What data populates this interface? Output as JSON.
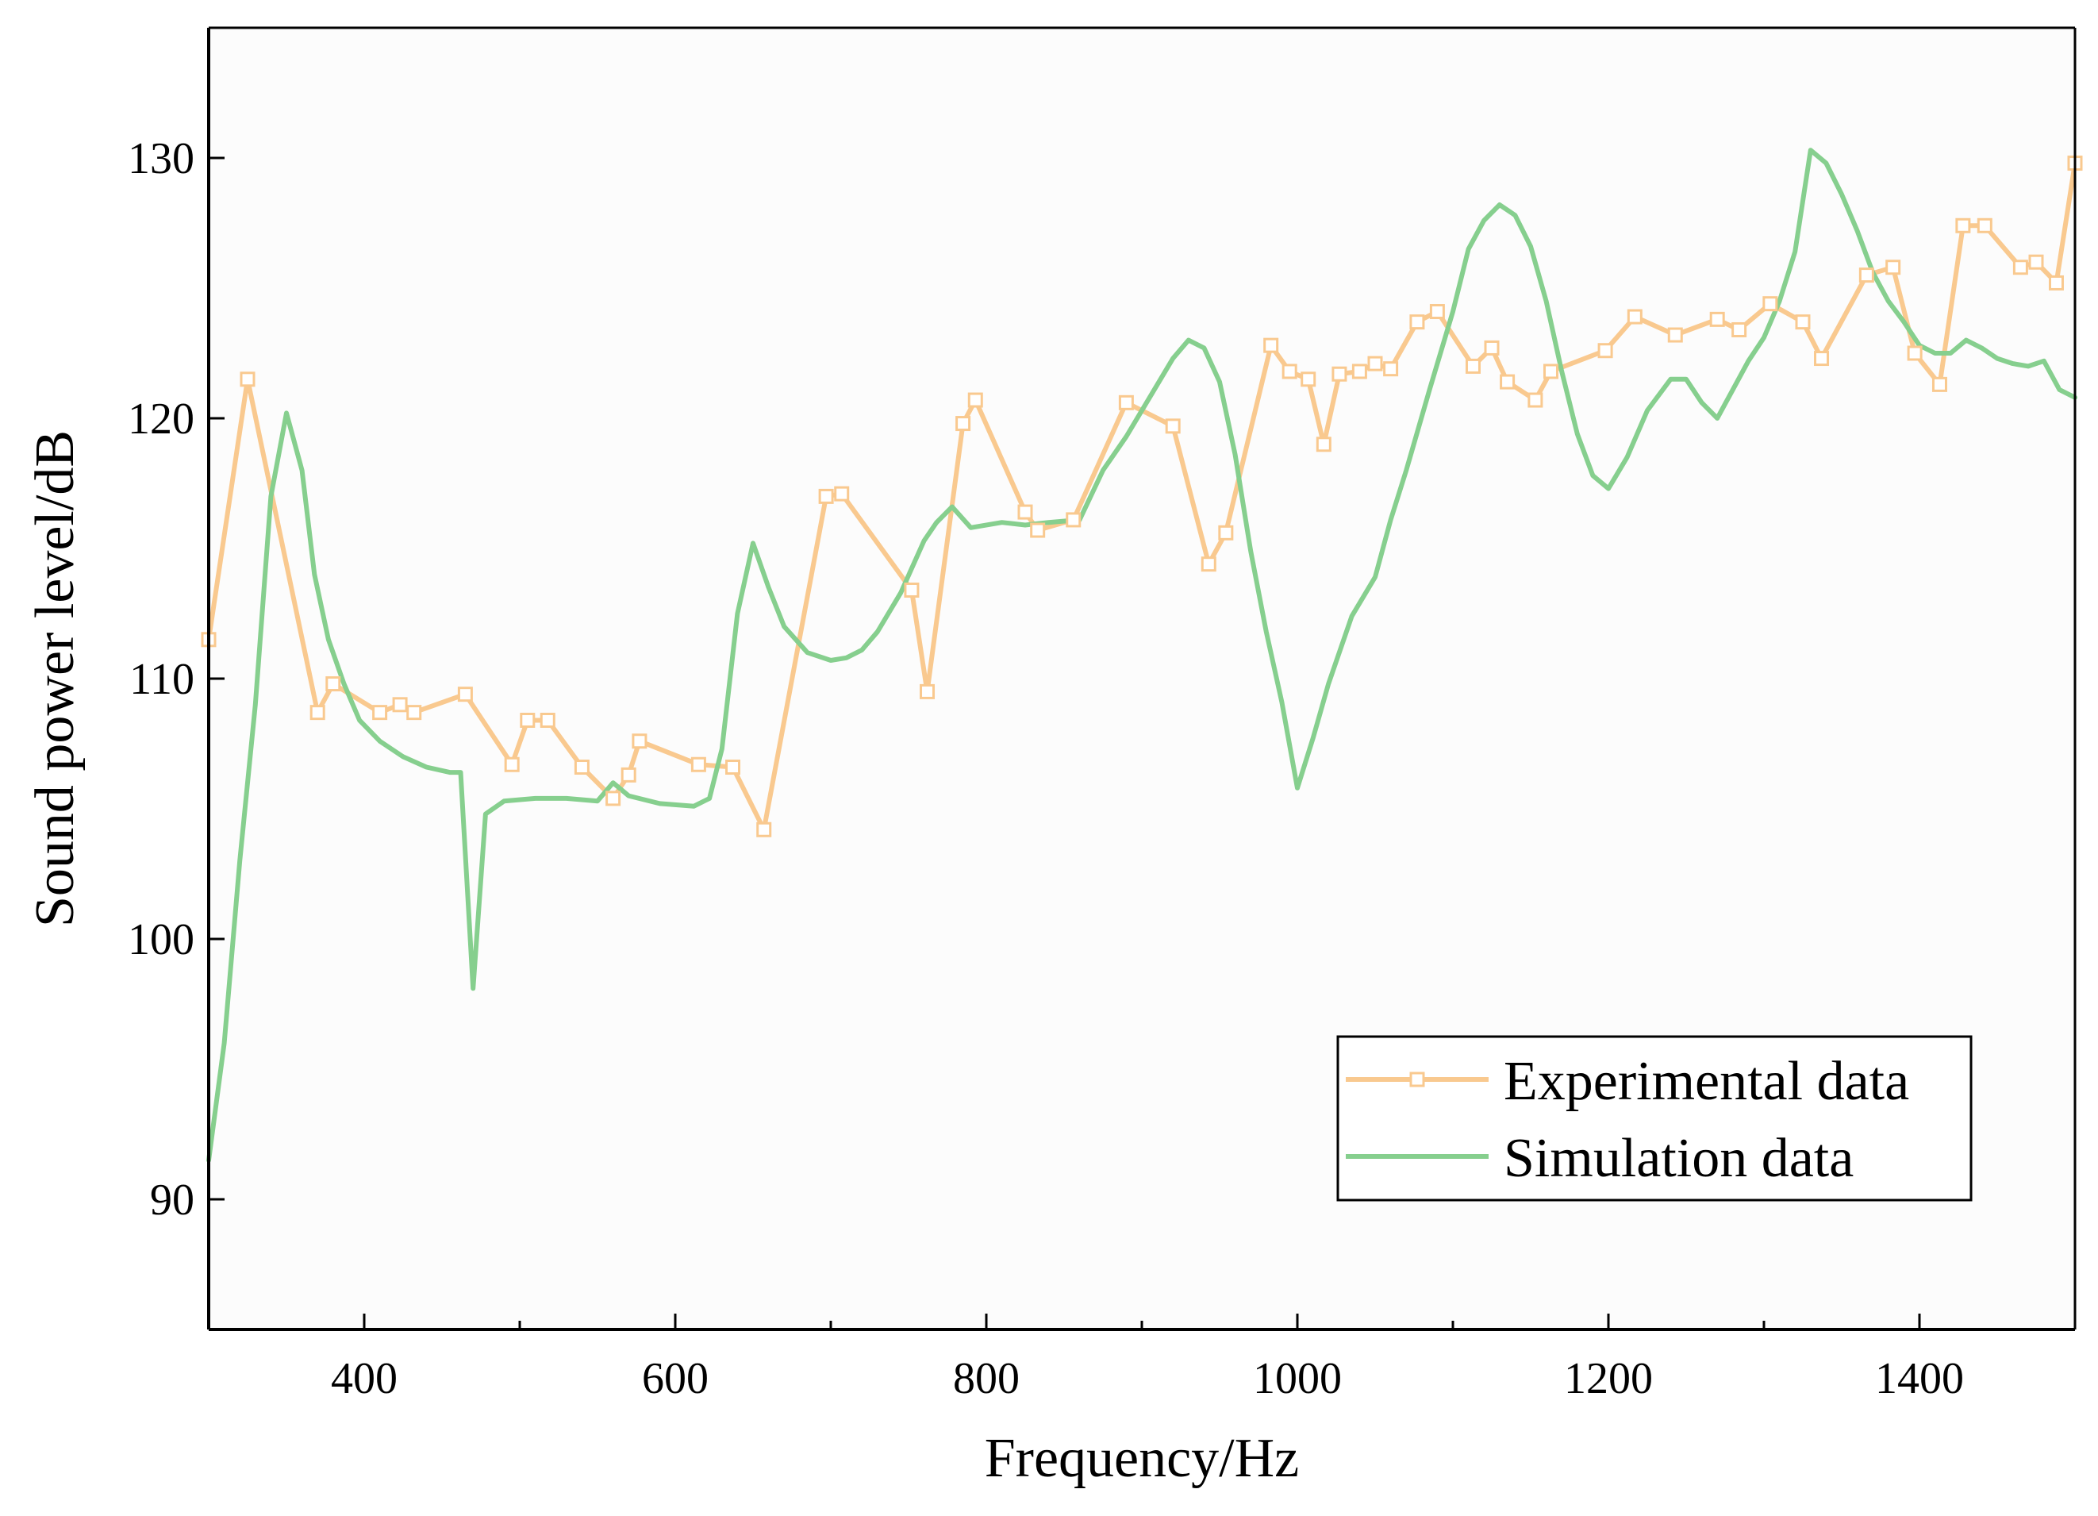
{
  "chart_data": {
    "type": "line",
    "title": "",
    "xlabel": "Frequency/Hz",
    "ylabel": "Sound power level/dB",
    "xlim": [
      300,
      1500
    ],
    "ylim": [
      85,
      135
    ],
    "xticks": [
      400,
      600,
      800,
      1000,
      1200,
      1400
    ],
    "yticks": [
      90,
      100,
      110,
      120,
      130
    ],
    "grid": false,
    "legend_position": "bottom-right",
    "colors": {
      "experimental": "#f9c98f",
      "simulation": "#86cf8e",
      "axis": "#000000"
    },
    "series": [
      {
        "name": "Experimental data",
        "marker": "square",
        "x": [
          300,
          325,
          370,
          380,
          410,
          423,
          432,
          465,
          495,
          505,
          518,
          540,
          560,
          570,
          577,
          615,
          637,
          657,
          697,
          707,
          752,
          762,
          785,
          793,
          825,
          833,
          856,
          890,
          920,
          943,
          954,
          983,
          995,
          1007,
          1017,
          1027,
          1040,
          1050,
          1060,
          1077,
          1090,
          1113,
          1125,
          1135,
          1153,
          1163,
          1198,
          1217,
          1243,
          1270,
          1284,
          1304,
          1325,
          1337,
          1366,
          1383,
          1397,
          1413,
          1428,
          1442,
          1465,
          1475,
          1488,
          1500
        ],
        "y": [
          111.5,
          121.5,
          108.7,
          109.8,
          108.7,
          109,
          108.7,
          109.4,
          106.7,
          108.4,
          108.4,
          106.6,
          105.4,
          106.3,
          107.6,
          106.7,
          106.6,
          104.2,
          117,
          117.1,
          113.4,
          109.5,
          119.8,
          120.7,
          116.4,
          115.7,
          116.1,
          120.6,
          119.7,
          114.4,
          115.6,
          122.8,
          121.8,
          121.5,
          119,
          121.7,
          121.8,
          122.1,
          121.9,
          123.7,
          124.1,
          122,
          122.7,
          121.4,
          120.7,
          121.8,
          122.6,
          123.9,
          123.2,
          123.8,
          123.4,
          124.4,
          123.7,
          122.3,
          125.5,
          125.8,
          122.5,
          121.3,
          127.4,
          127.4,
          125.8,
          126,
          125.2,
          129.8
        ]
      },
      {
        "name": "Simulation data",
        "x": [
          300,
          310,
          320,
          330,
          340,
          350,
          360,
          368,
          377,
          387,
          397,
          410,
          425,
          440,
          455,
          462,
          470,
          478,
          490,
          510,
          530,
          550,
          560,
          570,
          590,
          612,
          622,
          630,
          640,
          650,
          660,
          670,
          685,
          700,
          710,
          720,
          730,
          745,
          760,
          768,
          778,
          790,
          810,
          825,
          840,
          860,
          875,
          890,
          905,
          920,
          930,
          940,
          950,
          960,
          970,
          980,
          990,
          1000,
          1010,
          1020,
          1035,
          1050,
          1060,
          1070,
          1085,
          1100,
          1110,
          1120,
          1130,
          1140,
          1150,
          1160,
          1170,
          1180,
          1190,
          1200,
          1212,
          1225,
          1240,
          1250,
          1260,
          1270,
          1280,
          1290,
          1300,
          1310,
          1320,
          1330,
          1340,
          1350,
          1360,
          1370,
          1380,
          1390,
          1400,
          1410,
          1420,
          1430,
          1440,
          1450,
          1460,
          1470,
          1480,
          1490,
          1500
        ],
        "y": [
          91.5,
          96,
          103,
          109,
          117,
          120.2,
          118,
          114,
          111.5,
          109.8,
          108.4,
          107.6,
          107,
          106.6,
          106.4,
          106.4,
          98.1,
          104.8,
          105.3,
          105.4,
          105.4,
          105.3,
          106,
          105.5,
          105.2,
          105.1,
          105.4,
          107.3,
          112.5,
          115.2,
          113.5,
          112,
          111,
          110.7,
          110.8,
          111.1,
          111.8,
          113.3,
          115.3,
          116,
          116.6,
          115.8,
          116,
          115.9,
          116,
          116.1,
          118,
          119.3,
          120.8,
          122.3,
          123,
          122.7,
          121.4,
          118.6,
          114.9,
          111.8,
          109.1,
          105.8,
          107.7,
          109.8,
          112.4,
          113.9,
          116.1,
          118,
          121.1,
          124.1,
          126.5,
          127.6,
          128.2,
          127.8,
          126.6,
          124.5,
          121.8,
          119.4,
          117.8,
          117.3,
          118.5,
          120.3,
          121.5,
          121.5,
          120.6,
          120,
          121.1,
          122.2,
          123.1,
          124.5,
          126.4,
          130.3,
          129.8,
          128.6,
          127.2,
          125.6,
          124.5,
          123.7,
          122.8,
          122.5,
          122.5,
          123,
          122.7,
          122.3,
          122.1,
          122,
          122.2,
          121.1,
          120.8
        ]
      }
    ]
  }
}
